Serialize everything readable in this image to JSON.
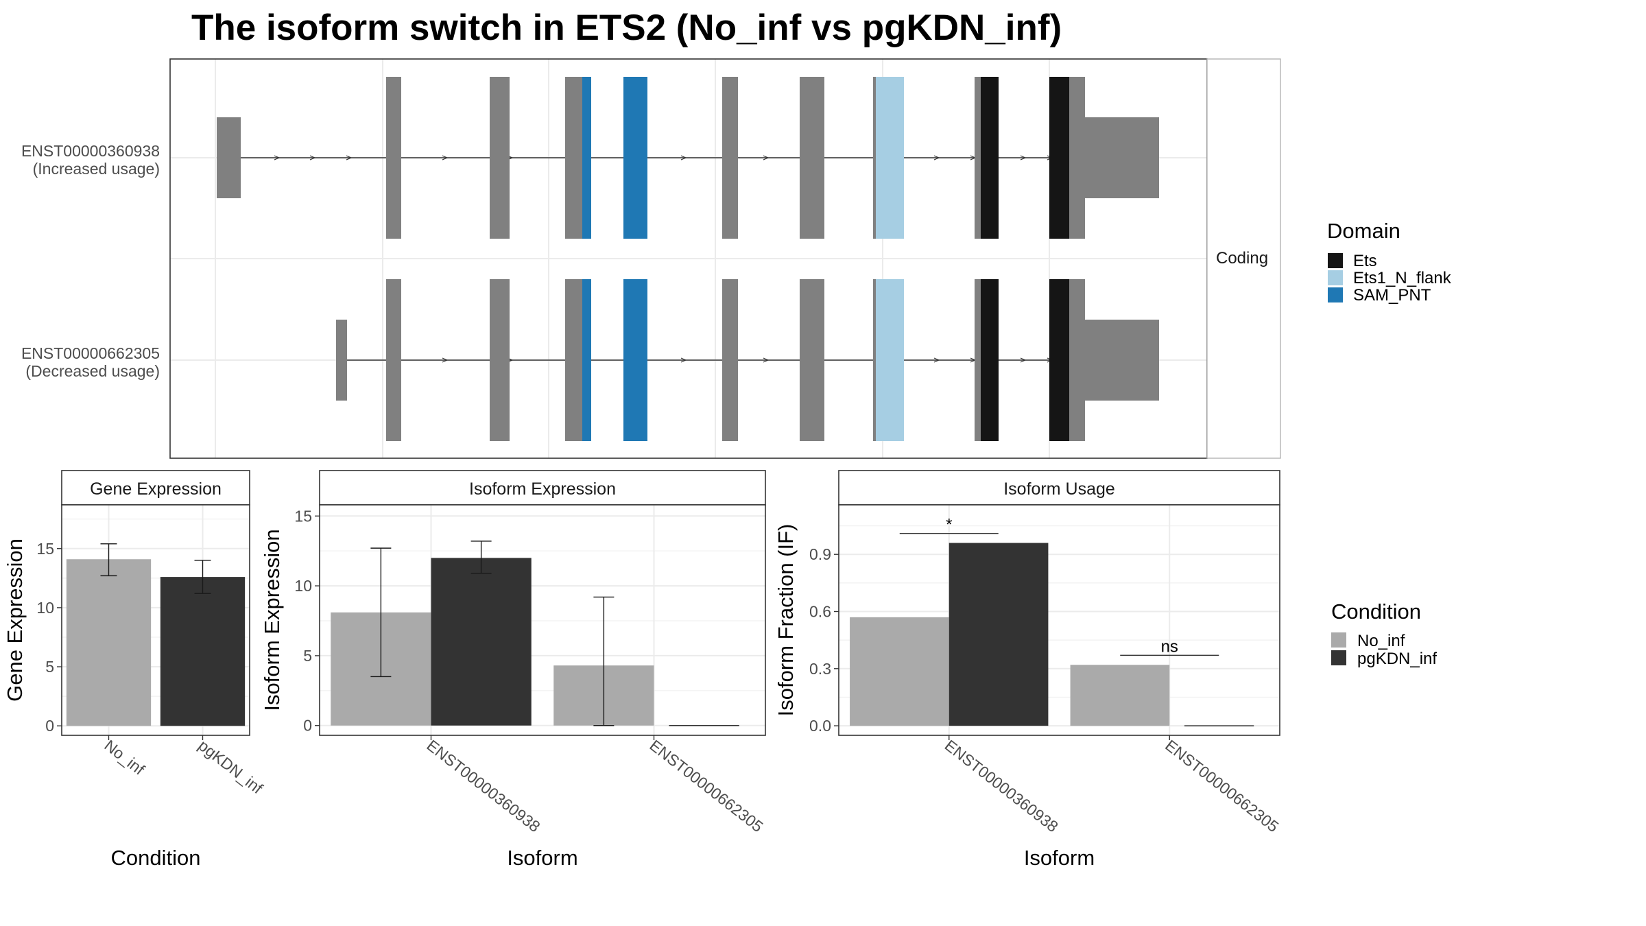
{
  "title": "The isoform switch in ETS2 (No_inf vs pgKDN_inf)",
  "colors": {
    "exon": "#808080",
    "Ets": "#151515",
    "Ets1_N_flank": "#a6cee3",
    "SAM_PNT": "#1f78b4",
    "No_inf": "#aaaaaa",
    "pgKDN_inf": "#333333"
  },
  "structure": {
    "strip_label": "Coding",
    "transcripts": [
      {
        "id": "ENST00000360938",
        "usage": "(Increased usage)",
        "first_exon": "long"
      },
      {
        "id": "ENST00000662305",
        "usage": "(Decreased usage)",
        "first_exon": "short"
      }
    ]
  },
  "domain_legend": {
    "title": "Domain",
    "items": [
      {
        "key": "Ets",
        "label": "Ets"
      },
      {
        "key": "Ets1_N_flank",
        "label": "Ets1_N_flank"
      },
      {
        "key": "SAM_PNT",
        "label": "SAM_PNT"
      }
    ]
  },
  "condition_legend": {
    "title": "Condition",
    "items": [
      {
        "key": "No_inf",
        "label": "No_inf"
      },
      {
        "key": "pgKDN_inf",
        "label": "pgKDN_inf"
      }
    ]
  },
  "chart_data": [
    {
      "type": "bar",
      "title": "Gene Expression",
      "xlabel": "Condition",
      "ylabel": "Gene Expression",
      "categories": [
        "No_inf",
        "pgKDN_inf"
      ],
      "series": [
        {
          "name": "No_inf",
          "values": [
            14.1,
            null
          ],
          "error_low": [
            12.7,
            null
          ],
          "error_high": [
            15.4,
            null
          ]
        },
        {
          "name": "pgKDN_inf",
          "values": [
            null,
            12.6
          ],
          "error_low": [
            null,
            11.2
          ],
          "error_high": [
            null,
            14.0
          ]
        }
      ],
      "yticks": [
        0,
        5,
        10,
        15
      ],
      "ylim": [
        -0.8,
        18.7
      ],
      "grid": true
    },
    {
      "type": "bar",
      "title": "Isoform Expression",
      "xlabel": "Isoform",
      "ylabel": "Isoform Expression",
      "categories": [
        "ENST00000360938",
        "ENST00000662305"
      ],
      "series": [
        {
          "name": "No_inf",
          "values": [
            8.1,
            4.3
          ],
          "error_low": [
            3.5,
            0.0
          ],
          "error_high": [
            12.7,
            9.2
          ]
        },
        {
          "name": "pgKDN_inf",
          "values": [
            12.0,
            0.0
          ],
          "error_low": [
            10.9,
            null
          ],
          "error_high": [
            13.2,
            null
          ]
        }
      ],
      "yticks": [
        0,
        5,
        10,
        15
      ],
      "ylim": [
        -0.7,
        15.8
      ],
      "grid": true
    },
    {
      "type": "bar",
      "title": "Isoform Usage",
      "xlabel": "Isoform",
      "ylabel": "Isoform Fraction (IF)",
      "categories": [
        "ENST00000360938",
        "ENST00000662305"
      ],
      "series": [
        {
          "name": "No_inf",
          "values": [
            0.57,
            0.32
          ]
        },
        {
          "name": "pgKDN_inf",
          "values": [
            0.96,
            0.0
          ]
        }
      ],
      "annotations": [
        {
          "category": "ENST00000360938",
          "text": "*",
          "y": 1.01
        },
        {
          "category": "ENST00000662305",
          "text": "ns",
          "y": 0.37
        }
      ],
      "yticks": [
        0.0,
        0.3,
        0.6,
        0.9
      ],
      "ylim": [
        -0.05,
        1.16
      ],
      "grid": true
    }
  ]
}
